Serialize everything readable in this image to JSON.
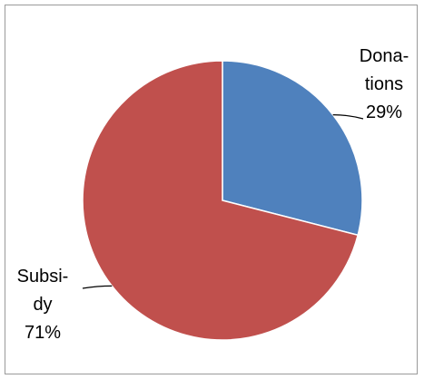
{
  "chart_data": {
    "type": "pie",
    "title": "",
    "categories": [
      "Donations",
      "Subsidy"
    ],
    "values": [
      29,
      71
    ],
    "unit": "%",
    "colors": [
      "#4f81bd",
      "#c0504d"
    ],
    "border_color": "#ffffff",
    "start_angle_deg": 0,
    "direction": "clockwise",
    "legend": "none",
    "labels": [
      {
        "lines": [
          "Dona-",
          "tions",
          "29%"
        ]
      },
      {
        "lines": [
          "Subsi-",
          "dy",
          "71%"
        ]
      }
    ]
  }
}
